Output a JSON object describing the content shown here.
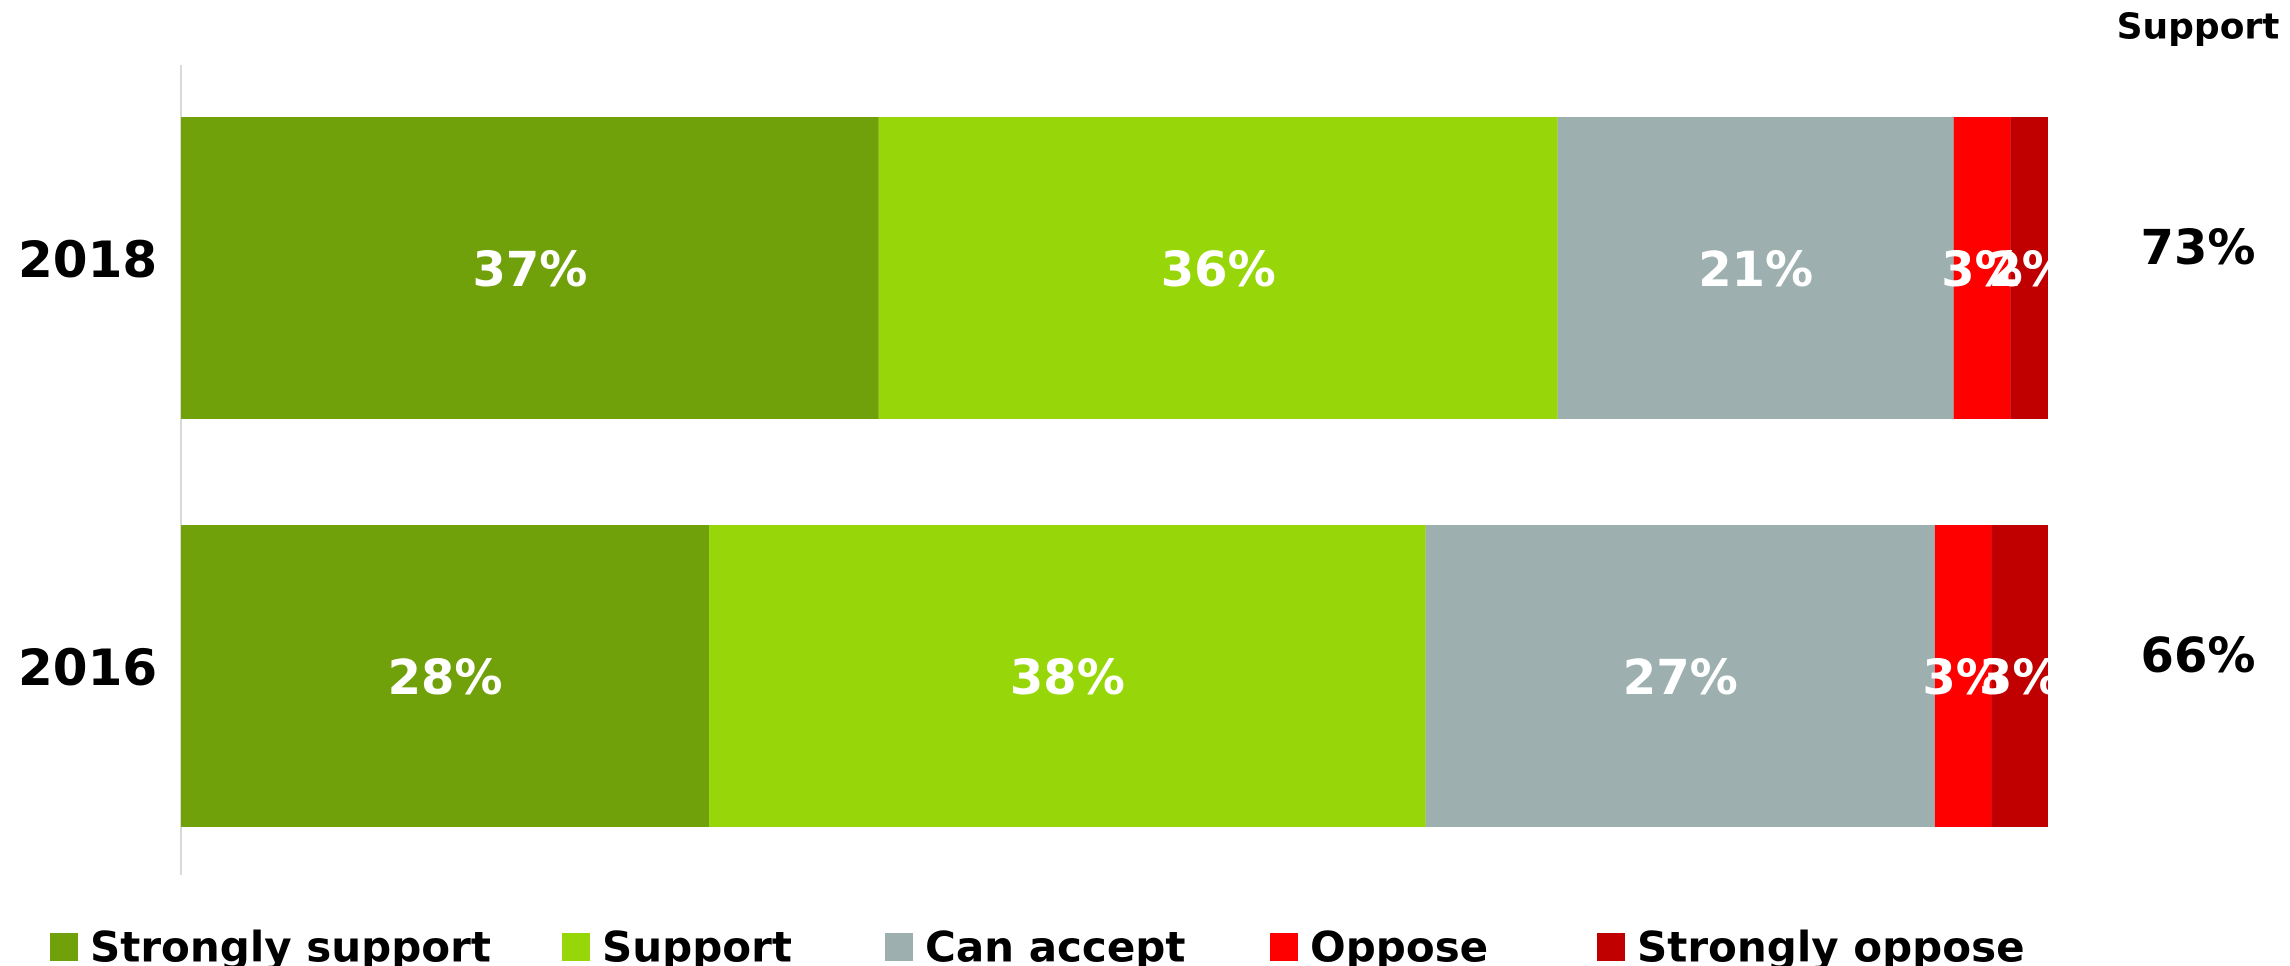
{
  "chart_data": {
    "type": "bar",
    "orientation": "horizontal",
    "stacked": true,
    "title": "",
    "xlabel": "",
    "ylabel": "",
    "xlim": [
      0,
      100
    ],
    "grid": false,
    "legend_position": "bottom",
    "categories": [
      "2018",
      "2016"
    ],
    "series": [
      {
        "name": "Strongly support",
        "color": "#70a00a",
        "values": [
          37,
          28
        ],
        "labels": [
          "37%",
          "28%"
        ]
      },
      {
        "name": "Support",
        "color": "#97d70a",
        "values": [
          36,
          38
        ],
        "labels": [
          "36%",
          "38%"
        ]
      },
      {
        "name": "Can accept",
        "color": "#9dafaf",
        "values": [
          21,
          27
        ],
        "labels": [
          "21%",
          "27%"
        ]
      },
      {
        "name": "Oppose",
        "color": "#ff0000",
        "values": [
          3,
          3
        ],
        "labels": [
          "3%",
          "3%"
        ]
      },
      {
        "name": "Strongly oppose",
        "color": "#c00000",
        "values": [
          2,
          3
        ],
        "labels": [
          "2%",
          "3%"
        ]
      }
    ],
    "totals": {
      "header": "Support",
      "values": [
        "73%",
        "66%"
      ]
    }
  }
}
